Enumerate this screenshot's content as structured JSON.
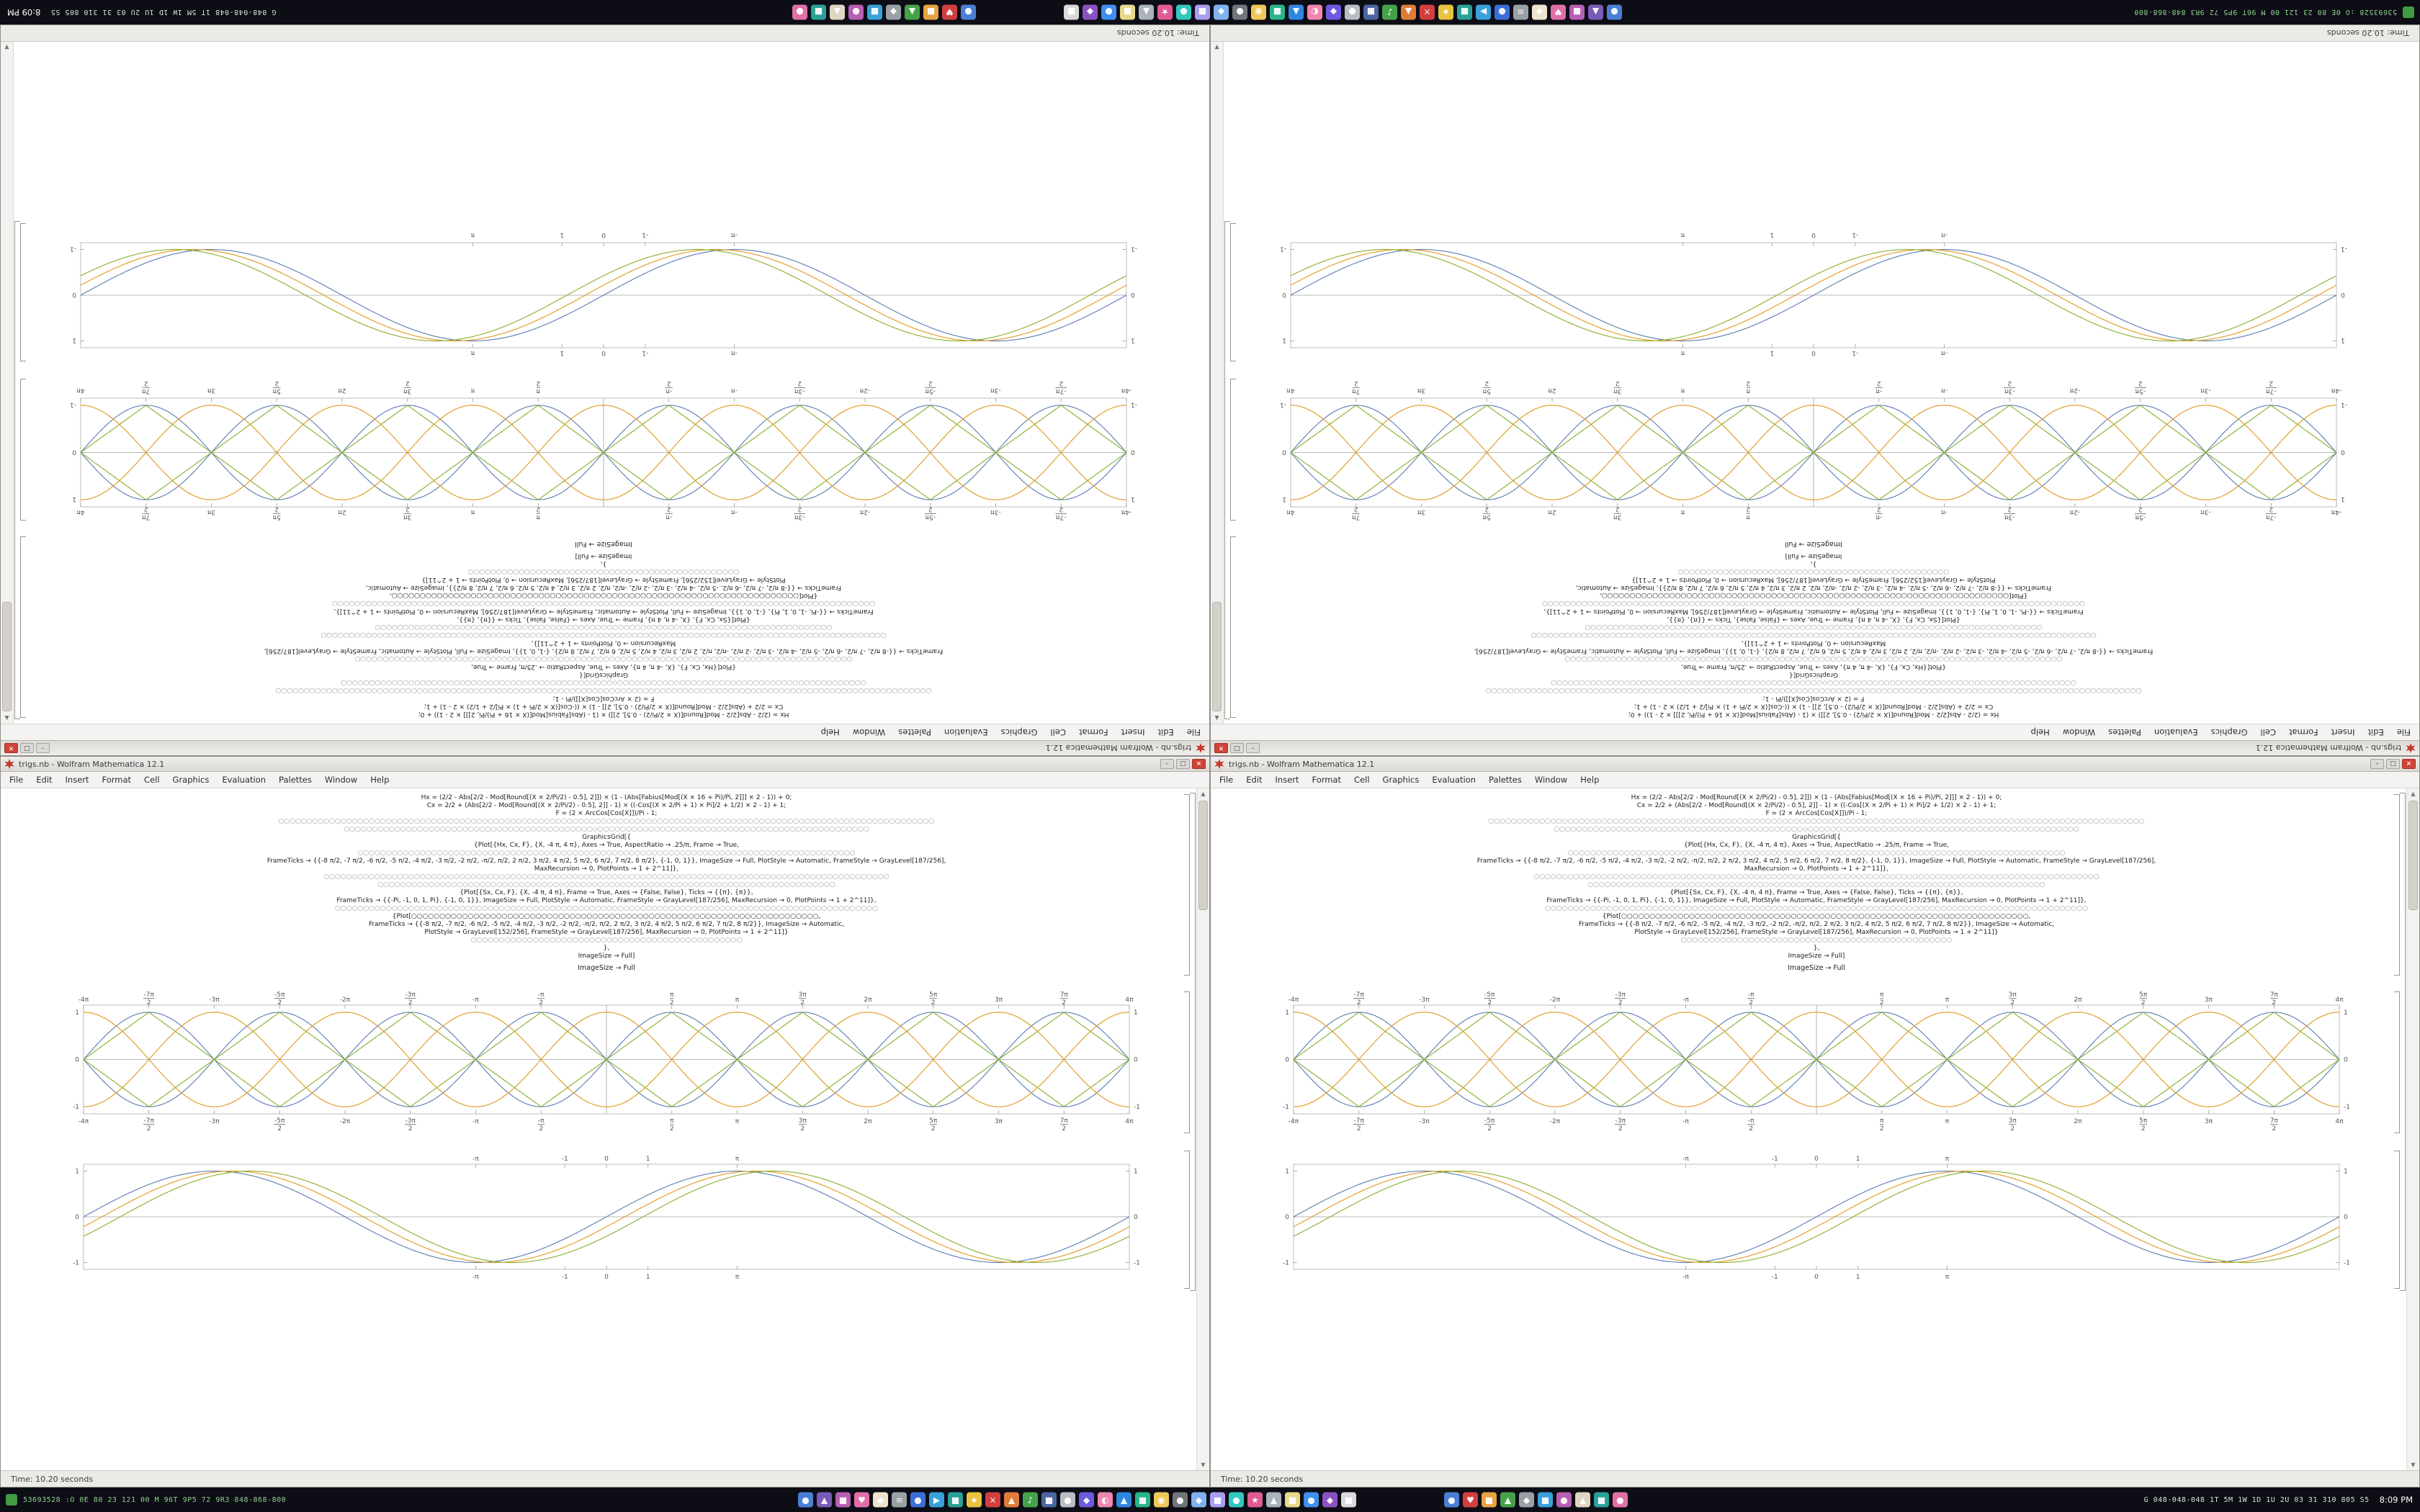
{
  "window": {
    "title": "trigs.nb - Wolfram Mathematica 12.1",
    "menu": [
      "File",
      "Edit",
      "Insert",
      "Format",
      "Cell",
      "Graphics",
      "Evaluation",
      "Palettes",
      "Window",
      "Help"
    ],
    "status": "Time: 10.20 seconds",
    "controls": {
      "minimize": "–",
      "maximize": "□",
      "close": "×"
    },
    "scrollbar": {
      "up": "▲",
      "down": "▼"
    },
    "code_footer": "ImageSize → Full",
    "code_lines": [
      "Hx = (2/2 - Abs[2/2 - Mod[Round[(X × 2/Pi/2) - 0.5], 2]]) × (1 - (Abs[Fabius[Mod[(X × 16 + Pi)/Pi, 2]]] × 2 - 1)) + 0;",
      "Cx = 2/2 + (Abs[2/2 - Mod[Round[(X × 2/Pi/2) - 0.5], 2]] - 1) × ((-Cos[(X × 2/Pi + 1) × Pi]/2 + 1/2) × 2 - 1) + 1;",
      "F = (2 × ArcCos[Cos[X]])/Pi - 1;",
      "○○○○○○○○○○○○○○○○○○○○○○○○○○○○○○○○○○○○○○○○○○○○○○○○○○○○○○○○○○○○○○○○○○○○○○○○○○○○○○○○○○○○○○○○○○○○○○○○○○○○○○○○○○○○○○○○○○○○",
      "○○○○○○○○○○○○○○○○○○○○○○○○○○○○○○○○○○○○○○○○○○○○◇○○○○○○○○○○○○○○○○○○○○○○○○○○○○○○○○○○○○○○○○○○○○○○○○",
      "GraphicsGrid[{",
      "{Plot[{Hx, Cx, F}, {X, -4 π, 4 π}, Axes → True, AspectRatio → .25/π, Frame → True,",
      "○○○○○○○○○○○○○○○○○○○○○○○○○○○○○○○○○○○○○○○○○○○○○○○○○○○○○○○○○○○○○○○○○○○○○○○○○○○○○○○○○○○○○○○○",
      "FrameTicks → {{-8 π/2, -7 π/2, -6 π/2, -5 π/2, -4 π/2, -3 π/2, -2 π/2, -π/2, π/2, 2 π/2, 3 π/2, 4 π/2, 5 π/2, 6 π/2, 7 π/2, 8 π/2}, {-1, 0, 1}}, ImageSize → Full, PlotStyle → Automatic, FrameStyle → GrayLevel[187/256],",
      "MaxRecursion → 0, PlotPoints → 1 + 2^11]},",
      "○○○○○○○○○○○○○○○○○○○○○○○○○○○○○○○○○○○○○○○○○○○○○○○○○○○○○○○○○○○○○○○○○○○○○○○○○○○○○○○○○○○○○○○○○○○○○○○○○○○○",
      "○○○○○○○○○○○○○○○○○○○○○○○○○○○○○○○○◇○○○○○○○○○○○○○○○○○○○○○○○○○○○○○○○○○○○○○○○○○○○○○○○○",
      "{Plot[{Sx, Cx, F}, {X, -4 π, 4 π}, Frame → True, Axes → {False, False}, Ticks → {{π}, {π}},",
      "FrameTicks → {{-Pi, -1, 0, 1, Pi}, {-1, 0, 1}}, ImageSize → Full, PlotStyle → Automatic, FrameStyle → GrayLevel[187/256], MaxRecursion → 0, PlotPoints → 1 + 2^11]},",
      "○○○○○○○○○○○○○○○○○○○○○○○○○○○○○○○○○○○○○○○○○○○○○○○○○○○○○○○○○○○○○○○○○○○○○○○○○○○○○○○○○○○○○○○○○○○○○○○○",
      "{Plot[○○○○○○○○○○○○○○○○○○○○○○○○○○○○○○○○○○○○○○○○○○○○○○○○○○○○○○○○○○○○○○○○○○○○○○○○,",
      "FrameTicks → {{-8 π/2, -7 π/2, -6 π/2, -5 π/2, -4 π/2, -3 π/2, -2 π/2, -π/2, π/2, 2 π/2, 3 π/2, 4 π/2, 5 π/2, 6 π/2, 7 π/2, 8 π/2}}, ImageSize → Automatic,",
      "PlotStyle → GrayLevel[152/256], FrameStyle → GrayLevel[187/256], MaxRecursion → 0, PlotPoints → 1 + 2^11]}",
      "○○○○○○○○○○○○○○○○○○○○○○○○○○○○○○○○○○○○○○○○○○○○○○○○",
      "},",
      "ImageSize → Full]"
    ]
  },
  "taskbar": {
    "left_stats": "53693528 :O 0E 80 23 121 00 M 96T 9P5 72 9R3 848-868-800",
    "right_stats": "G 048-048-048 1T 5M 1W 1D 1U 2U 03 31 310 805 S5",
    "clock": "8:09 PM",
    "tray_icons_a": [
      {
        "g": "●",
        "c": "#4a7fd4"
      },
      {
        "g": "▲",
        "c": "#7a5bb5"
      },
      {
        "g": "■",
        "c": "#b75fb3"
      },
      {
        "g": "♥",
        "c": "#e06fa8"
      },
      {
        "g": "◆",
        "c": "#efe3cc"
      },
      {
        "g": "≡",
        "c": "#9aa0a6"
      },
      {
        "g": "●",
        "c": "#3a6fd8"
      },
      {
        "g": "▶",
        "c": "#39a0d8"
      },
      {
        "g": "■",
        "c": "#2aa198"
      },
      {
        "g": "★",
        "c": "#e7c341"
      },
      {
        "g": "×",
        "c": "#d23f3f"
      },
      {
        "g": "▲",
        "c": "#e07b39"
      },
      {
        "g": "♪",
        "c": "#46a24a"
      },
      {
        "g": "■",
        "c": "#4a66a0"
      },
      {
        "g": "●",
        "c": "#b9bec4"
      },
      {
        "g": "◆",
        "c": "#6d5ae0"
      },
      {
        "g": "◐",
        "c": "#ef86b0"
      },
      {
        "g": "▲",
        "c": "#2f86e0"
      },
      {
        "g": "■",
        "c": "#27b589"
      },
      {
        "g": "◉",
        "c": "#eec95a"
      },
      {
        "g": "●",
        "c": "#70757a"
      },
      {
        "g": "◆",
        "c": "#7fb3ef"
      },
      {
        "g": "■",
        "c": "#a99df0"
      },
      {
        "g": "●",
        "c": "#32c8c0"
      },
      {
        "g": "★",
        "c": "#e05a94"
      },
      {
        "g": "▲",
        "c": "#aab4ba"
      },
      {
        "g": "■",
        "c": "#e8d98a"
      },
      {
        "g": "●",
        "c": "#3f8fef"
      },
      {
        "g": "◆",
        "c": "#8a52c0"
      },
      {
        "g": "■",
        "c": "#d8dadc"
      }
    ],
    "tray_icons_b": [
      {
        "g": "●",
        "c": "#4a7fd4"
      },
      {
        "g": "♥",
        "c": "#d23f3f"
      },
      {
        "g": "■",
        "c": "#e7a341"
      },
      {
        "g": "▲",
        "c": "#46a24a"
      },
      {
        "g": "◆",
        "c": "#9aa0a6"
      },
      {
        "g": "■",
        "c": "#39a0d8"
      },
      {
        "g": "●",
        "c": "#b75fb3"
      },
      {
        "g": "▲",
        "c": "#ded6c2"
      },
      {
        "g": "■",
        "c": "#2aa198"
      },
      {
        "g": "●",
        "c": "#e06fa8"
      }
    ]
  },
  "colors": {
    "close_button": "#cf4436",
    "curve_blue": "#5e81b5",
    "curve_orange": "#e19c24",
    "curve_green": "#8fb032",
    "frame_gray": "#bdbdbd"
  },
  "chart_data": [
    {
      "type": "line",
      "title": "",
      "xlabel": "",
      "ylabel": "",
      "x_range": [
        -12.566,
        12.566
      ],
      "y_range": [
        -1.15,
        1.15
      ],
      "x_tick_values": [
        -12.566,
        -10.996,
        -9.4248,
        -7.854,
        -6.2832,
        -4.7124,
        -3.1416,
        -1.5708,
        1.5708,
        3.1416,
        4.7124,
        6.2832,
        7.854,
        9.4248,
        10.996,
        12.566
      ],
      "x_tick_labels": [
        "-4π",
        "-7π/2",
        "-3π",
        "-5π/2",
        "-2π",
        "-3π/2",
        "-π",
        "-π/2",
        "π/2",
        "π",
        "3π/2",
        "2π",
        "5π/2",
        "3π",
        "7π/2",
        "4π"
      ],
      "y_tick_values": [
        -1,
        0,
        1
      ],
      "y_tick_labels": [
        "-1",
        "0",
        "1"
      ],
      "axis_h": true,
      "axis_v": true,
      "frame": true,
      "legend": "none",
      "series": [
        {
          "name": "abs-sin",
          "f": "sin",
          "k": 1,
          "p": 0,
          "abs": true,
          "neg": false,
          "color": "#5e81b5"
        },
        {
          "name": "neg-abs-sin",
          "f": "sin",
          "k": 1,
          "p": 0,
          "abs": true,
          "neg": true,
          "color": "#5e81b5"
        },
        {
          "name": "abs-cos",
          "f": "cos",
          "k": 1,
          "p": 0,
          "abs": true,
          "neg": false,
          "color": "#e19c24"
        },
        {
          "name": "neg-abs-cos",
          "f": "cos",
          "k": 1,
          "p": 0,
          "abs": true,
          "neg": true,
          "color": "#e19c24"
        },
        {
          "name": "triangle",
          "f": "tri",
          "k": 1,
          "p": 0,
          "abs": false,
          "neg": false,
          "color": "#8fb032"
        },
        {
          "name": "neg-triangle",
          "f": "tri",
          "k": 1,
          "p": 0,
          "abs": false,
          "neg": true,
          "color": "#8fb032"
        }
      ]
    },
    {
      "type": "line",
      "title": "",
      "xlabel": "",
      "ylabel": "",
      "x_range": [
        -12.566,
        12.566
      ],
      "y_range": [
        -1.15,
        1.15
      ],
      "x_tick_values": [
        -3.1416,
        -1,
        0,
        1,
        3.1416
      ],
      "x_tick_labels": [
        "-π",
        "-1",
        "0",
        "1",
        "π"
      ],
      "y_tick_values": [
        -1,
        0,
        1
      ],
      "y_tick_labels": [
        "-1",
        "0",
        "1"
      ],
      "axis_h": true,
      "axis_v": false,
      "frame": true,
      "legend": "none",
      "series": [
        {
          "name": "sin-a",
          "f": "sin",
          "k": 0.5,
          "p": 0,
          "abs": false,
          "neg": false,
          "color": "#5e81b5"
        },
        {
          "name": "sin-b",
          "f": "sin",
          "k": 0.5,
          "p": -0.22,
          "abs": false,
          "neg": false,
          "color": "#e19c24"
        },
        {
          "name": "sin-c",
          "f": "sin",
          "k": 0.5,
          "p": -0.44,
          "abs": false,
          "neg": false,
          "color": "#8fb032"
        }
      ]
    }
  ]
}
